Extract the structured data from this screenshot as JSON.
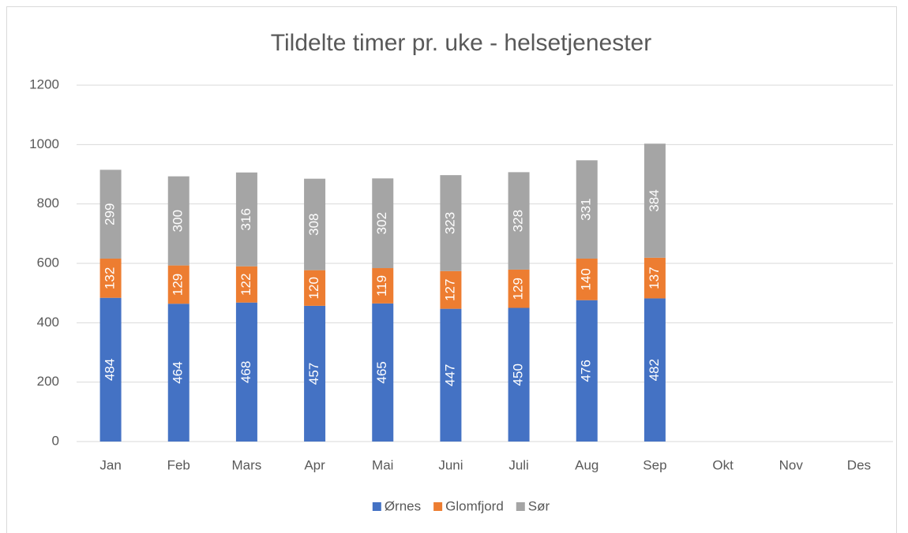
{
  "chart_data": {
    "type": "bar",
    "stacked": true,
    "title": "Tildelte timer pr. uke - helsetjenester",
    "categories": [
      "Jan",
      "Feb",
      "Mars",
      "Apr",
      "Mai",
      "Juni",
      "Juli",
      "Aug",
      "Sep",
      "Okt",
      "Nov",
      "Des"
    ],
    "series": [
      {
        "name": "Ørnes",
        "color": "#4472c4",
        "values": [
          484,
          464,
          468,
          457,
          465,
          447,
          450,
          476,
          482,
          null,
          null,
          null
        ]
      },
      {
        "name": "Glomfjord",
        "color": "#ed7d31",
        "values": [
          132,
          129,
          122,
          120,
          119,
          127,
          129,
          140,
          137,
          null,
          null,
          null
        ]
      },
      {
        "name": "Sør",
        "color": "#a5a5a5",
        "values": [
          299,
          300,
          316,
          308,
          302,
          323,
          328,
          331,
          384,
          null,
          null,
          null
        ]
      }
    ],
    "ylim": [
      0,
      1200
    ],
    "yticks": [
      0,
      200,
      400,
      600,
      800,
      1000,
      1200
    ],
    "grid": true,
    "legend": "bottom"
  }
}
